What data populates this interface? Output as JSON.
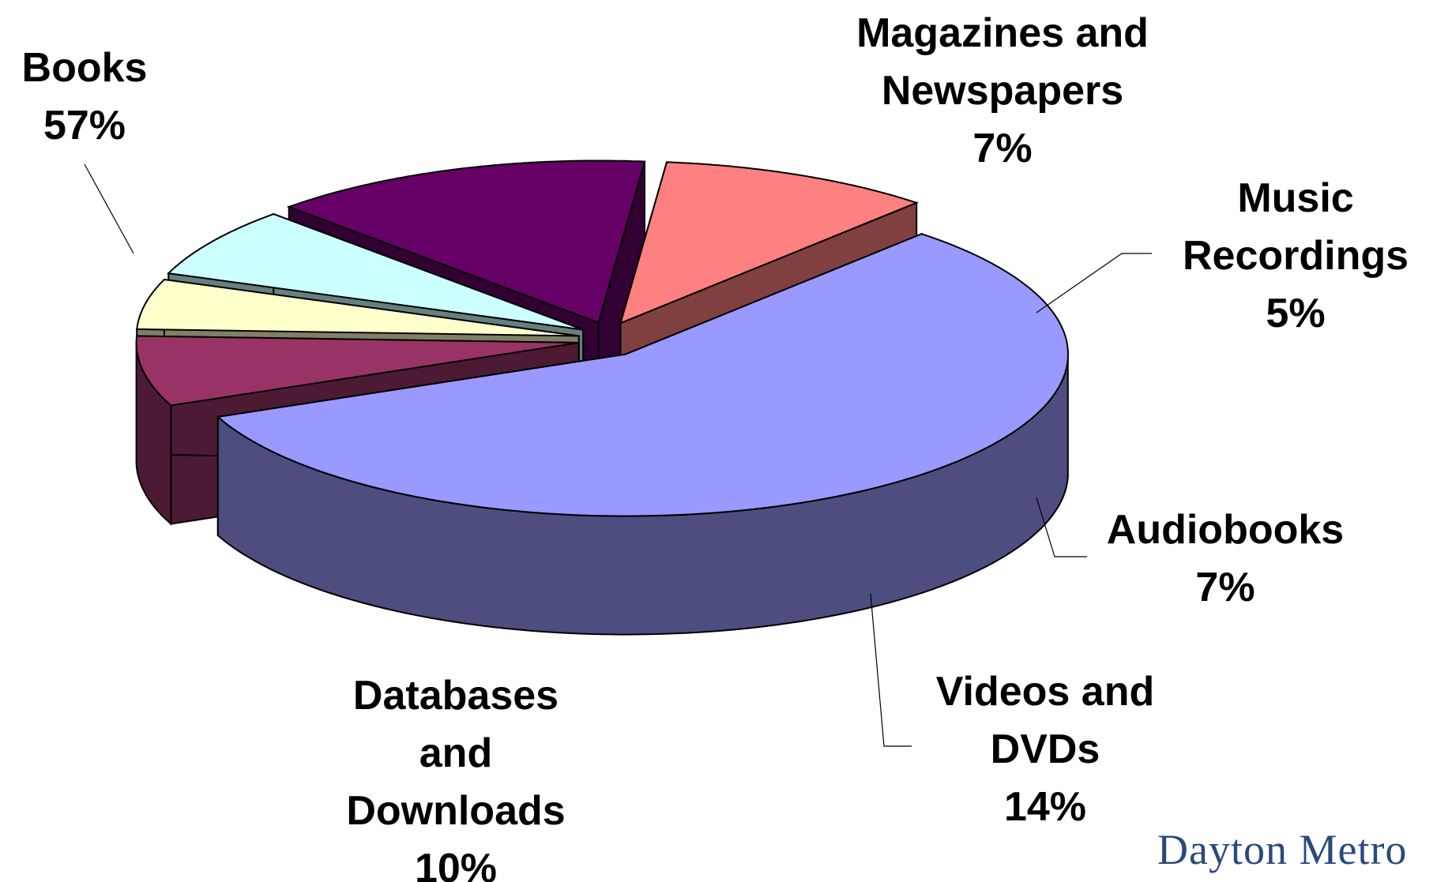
{
  "chart_data": {
    "type": "pie",
    "categories": [
      "Books",
      "Magazines and Newspapers",
      "Music Recordings",
      "Audiobooks",
      "Videos and DVDs",
      "Databases and Downloads"
    ],
    "values": [
      57,
      7,
      5,
      7,
      14,
      10
    ],
    "value_labels": [
      "57%",
      "7%",
      "5%",
      "7%",
      "14%",
      "10%"
    ],
    "colors": [
      "#9999ff",
      "#993366",
      "#ffffcc",
      "#ccffff",
      "#660066",
      "#ff8080"
    ]
  },
  "logo": "Dayton Metro"
}
